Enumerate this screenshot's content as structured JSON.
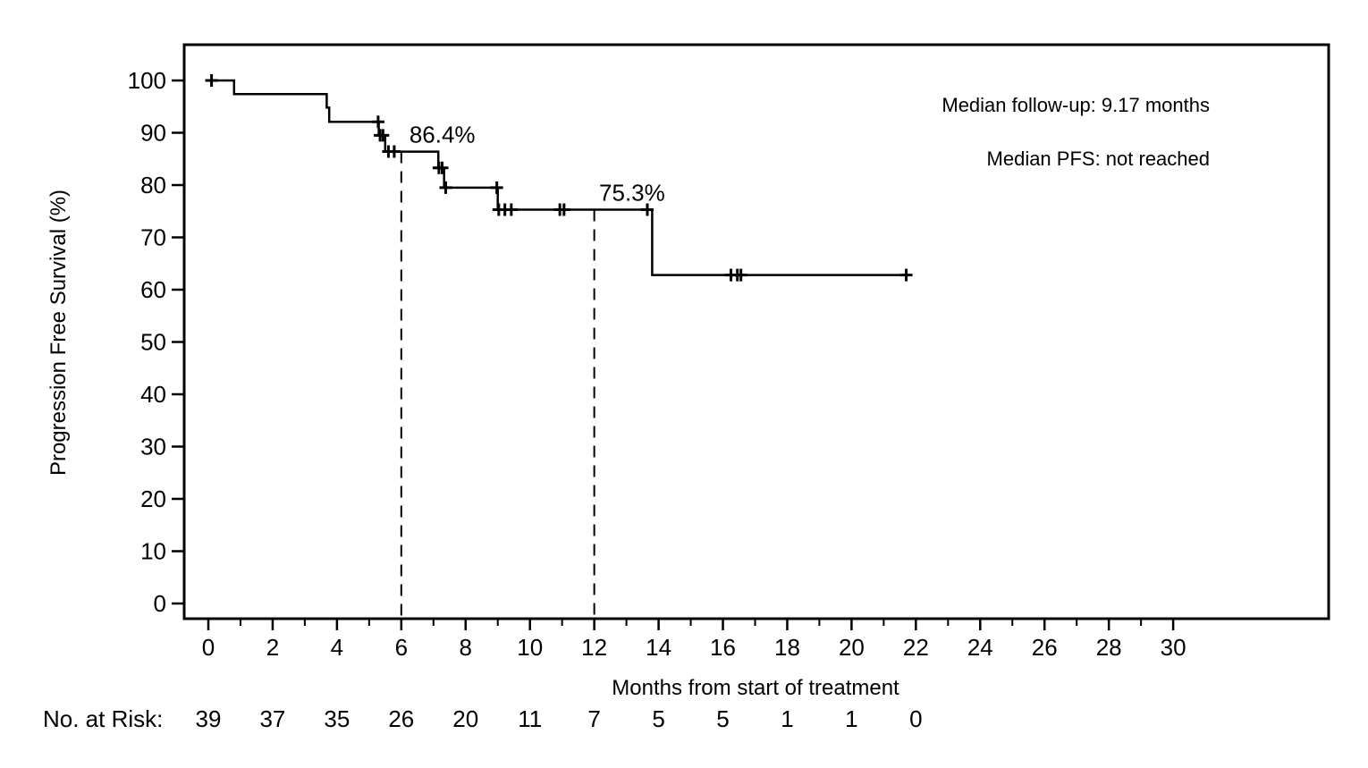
{
  "chart_data": {
    "type": "line",
    "subtype": "kaplan-meier-step",
    "title": "",
    "xlabel": "Months from start of treatment",
    "ylabel": "Progression Free Survival (%)",
    "xlim": [
      0,
      34.5
    ],
    "ylim": [
      0,
      100
    ],
    "x_major_ticks": [
      0,
      2,
      4,
      6,
      8,
      10,
      12,
      14,
      16,
      18,
      20,
      22,
      24,
      26,
      28,
      30
    ],
    "x_minor_ticks": [
      1,
      3,
      5,
      7,
      9,
      11,
      13,
      15,
      17,
      19,
      21,
      23,
      25,
      27,
      29
    ],
    "y_ticks": [
      0,
      10,
      20,
      30,
      40,
      50,
      60,
      70,
      80,
      90,
      100
    ],
    "grid": "off",
    "legend": "none",
    "series": [
      {
        "name": "Progression Free Survival",
        "step_points": [
          [
            0.05,
            100
          ],
          [
            0.8,
            100
          ],
          [
            0.8,
            97.4
          ],
          [
            3.68,
            97.4
          ],
          [
            3.68,
            94.8
          ],
          [
            3.76,
            94.8
          ],
          [
            3.76,
            92.1
          ],
          [
            5.3,
            92.1
          ],
          [
            5.3,
            89.5
          ],
          [
            5.5,
            89.5
          ],
          [
            5.5,
            86.4
          ],
          [
            7.15,
            86.4
          ],
          [
            7.15,
            83.3
          ],
          [
            7.33,
            83.3
          ],
          [
            7.33,
            79.5
          ],
          [
            9.0,
            79.5
          ],
          [
            9.0,
            75.3
          ],
          [
            13.8,
            75.3
          ],
          [
            13.8,
            62.8
          ],
          [
            21.78,
            62.8
          ]
        ],
        "censor_marks": [
          [
            0.1,
            100
          ],
          [
            5.28,
            92.1
          ],
          [
            5.34,
            89.5
          ],
          [
            5.43,
            89.5
          ],
          [
            5.6,
            86.4
          ],
          [
            5.78,
            86.4
          ],
          [
            7.17,
            83.3
          ],
          [
            7.27,
            83.3
          ],
          [
            7.38,
            79.5
          ],
          [
            8.97,
            79.5
          ],
          [
            9.03,
            75.3
          ],
          [
            9.22,
            75.3
          ],
          [
            9.42,
            75.3
          ],
          [
            10.93,
            75.3
          ],
          [
            11.06,
            75.3
          ],
          [
            13.65,
            75.3
          ],
          [
            16.25,
            62.8
          ],
          [
            16.45,
            62.8
          ],
          [
            16.56,
            62.8
          ],
          [
            21.7,
            62.8
          ]
        ]
      }
    ],
    "reference_lines": [
      {
        "x": 6,
        "y_top": 86.4,
        "style": "dashed"
      },
      {
        "x": 12,
        "y_top": 75.3,
        "style": "dashed"
      }
    ],
    "annotations": [
      {
        "text": "86.4%",
        "x": 6.25,
        "y": 86.4
      },
      {
        "text": "75.3%",
        "x": 12.15,
        "y": 75.3
      }
    ],
    "notes": [
      "Median follow-up: 9.17 months",
      "Median PFS: not reached"
    ],
    "risk_table": {
      "label": "No. at Risk:",
      "months": [
        0,
        2,
        4,
        6,
        8,
        10,
        12,
        14,
        16,
        18,
        20,
        22
      ],
      "values": [
        39,
        37,
        35,
        26,
        20,
        11,
        7,
        5,
        5,
        1,
        1,
        0
      ]
    },
    "colors": {
      "line": "#000000",
      "background": "#ffffff",
      "text": "#000000"
    }
  }
}
